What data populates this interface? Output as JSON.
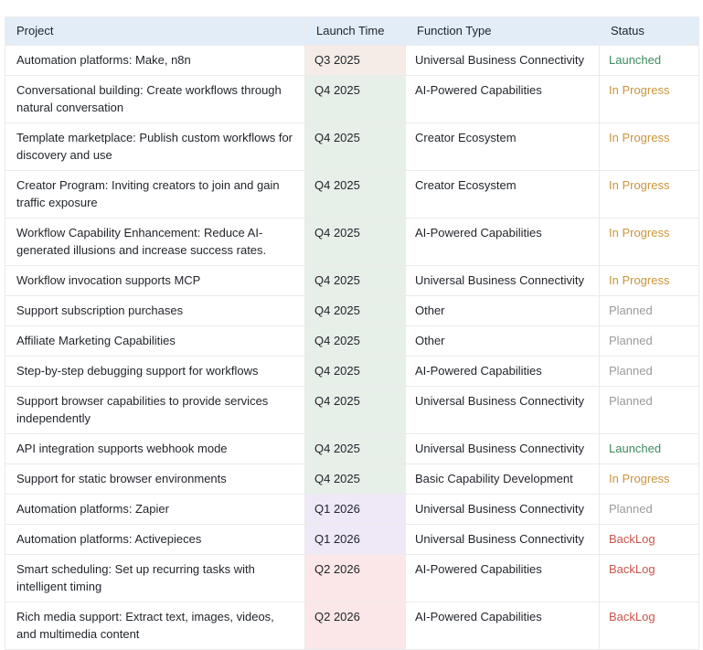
{
  "table": {
    "columns": [
      {
        "key": "project",
        "label": "Project"
      },
      {
        "key": "launch_time",
        "label": "Launch Time"
      },
      {
        "key": "function_type",
        "label": "Function Type"
      },
      {
        "key": "status",
        "label": "Status"
      }
    ],
    "rows": [
      {
        "project": "Automation platforms: Make, n8n",
        "launch_time": "Q3 2025",
        "function_type": "Universal Business Connectivity",
        "status": "Launched"
      },
      {
        "project": "Conversational building: Create workflows through natural conversation",
        "launch_time": "Q4 2025",
        "function_type": "AI-Powered Capabilities",
        "status": "In Progress"
      },
      {
        "project": "Template marketplace: Publish custom workflows for discovery and use",
        "launch_time": "Q4 2025",
        "function_type": "Creator Ecosystem",
        "status": "In Progress"
      },
      {
        "project": "Creator Program: Inviting creators to join and gain traffic exposure",
        "launch_time": "Q4 2025",
        "function_type": "Creator Ecosystem",
        "status": "In Progress"
      },
      {
        "project": "Workflow Capability Enhancement: Reduce AI-generated illusions and increase success rates.",
        "launch_time": "Q4 2025",
        "function_type": "AI-Powered Capabilities",
        "status": "In Progress"
      },
      {
        "project": "Workflow invocation supports MCP",
        "launch_time": "Q4 2025",
        "function_type": "Universal Business Connectivity",
        "status": "In Progress"
      },
      {
        "project": "Support subscription purchases",
        "launch_time": "Q4 2025",
        "function_type": "Other",
        "status": "Planned"
      },
      {
        "project": "Affiliate Marketing Capabilities",
        "launch_time": "Q4 2025",
        "function_type": "Other",
        "status": "Planned"
      },
      {
        "project": "Step-by-step debugging support for workflows",
        "launch_time": "Q4 2025",
        "function_type": "AI-Powered Capabilities",
        "status": "Planned"
      },
      {
        "project": "Support browser capabilities to provide services independently",
        "launch_time": "Q4 2025",
        "function_type": "Universal Business Connectivity",
        "status": "Planned"
      },
      {
        "project": "API integration supports webhook mode",
        "launch_time": "Q4 2025",
        "function_type": "Universal Business Connectivity",
        "status": "Launched"
      },
      {
        "project": "Support for static browser environments",
        "launch_time": "Q4 2025",
        "function_type": "Basic Capability Development",
        "status": "In Progress"
      },
      {
        "project": "Automation platforms: Zapier",
        "launch_time": "Q1 2026",
        "function_type": "Universal Business Connectivity",
        "status": "Planned"
      },
      {
        "project": "Automation platforms: Activepieces",
        "launch_time": "Q1 2026",
        "function_type": "Universal Business Connectivity",
        "status": "BackLog"
      },
      {
        "project": "Smart scheduling: Set up recurring tasks with intelligent timing",
        "launch_time": "Q2 2026",
        "function_type": "AI-Powered Capabilities",
        "status": "BackLog"
      },
      {
        "project": "Rich media support: Extract text, images, videos, and multimedia content",
        "launch_time": "Q2 2026",
        "function_type": "AI-Powered Capabilities",
        "status": "BackLog"
      }
    ]
  },
  "colors": {
    "header_bg": "#e2edf8",
    "border": "#ebebeb",
    "text": "#1f2329",
    "quarter_bg": {
      "Q3 2025": "#f6ece7",
      "Q4 2025": "#e7efe9",
      "Q1 2026": "#eee8f7",
      "Q2 2026": "#fbe7e7"
    },
    "status_text": {
      "Launched": "#3d8b5f",
      "In Progress": "#c9953d",
      "Planned": "#9b9b9b",
      "BackLog": "#cb544c"
    }
  }
}
